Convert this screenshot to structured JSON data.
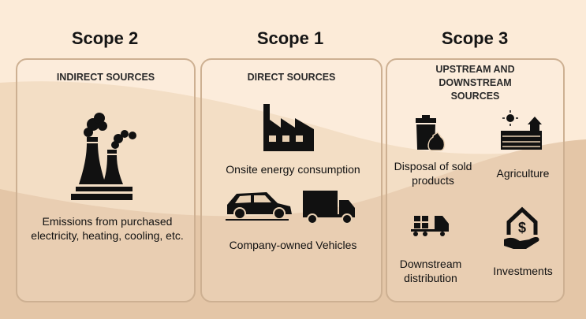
{
  "scopes": [
    {
      "title": "Scope 2",
      "heading": "INDIRECT SOURCES",
      "items": [
        "Emissions from purchased electricity, heating, cooling, etc."
      ]
    },
    {
      "title": "Scope 1",
      "heading": "DIRECT SOURCES",
      "items": [
        "Onsite energy consumption",
        "Company-owned Vehicles"
      ]
    },
    {
      "title": "Scope 3",
      "heading": "UPSTREAM AND DOWNSTREAM SOURCES",
      "items": [
        "Disposal of sold products",
        "Agriculture",
        "Downstream distribution",
        "Investments"
      ]
    }
  ],
  "colors": {
    "background_light": "#fcebd8",
    "wave_mid": "#f1d9bd",
    "wave_dark": "#e4c6a7",
    "panel_border": "#cdb092",
    "icon": "#111111"
  },
  "icons": [
    "power-plant-icon",
    "factory-icon",
    "car-icon",
    "truck-icon",
    "trash-bag-icon",
    "farm-icon",
    "delivery-truck-icon",
    "investment-house-icon"
  ]
}
